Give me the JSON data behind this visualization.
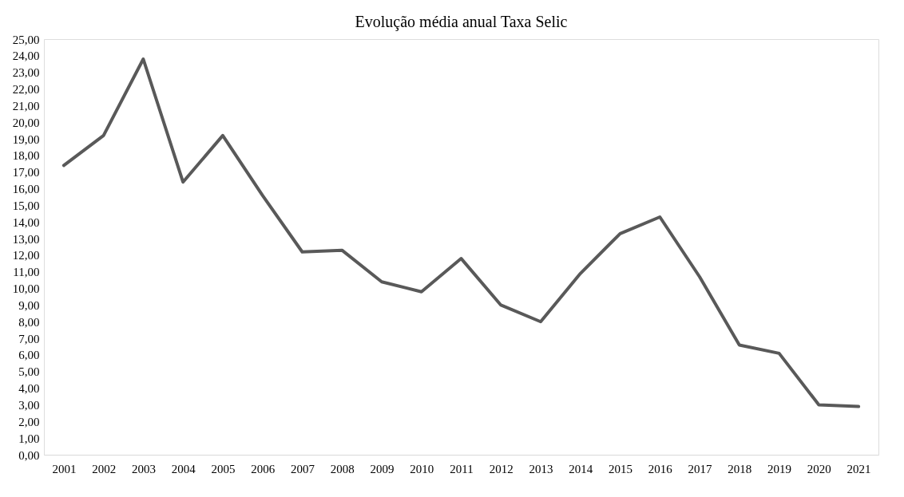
{
  "chart_data": {
    "type": "line",
    "title": "Evolução média anual Taxa Selic",
    "categories": [
      "2001",
      "2002",
      "2003",
      "2004",
      "2005",
      "2006",
      "2007",
      "2008",
      "2009",
      "2010",
      "2011",
      "2012",
      "2013",
      "2014",
      "2015",
      "2016",
      "2017",
      "2018",
      "2019",
      "2020",
      "2021"
    ],
    "series": [
      {
        "color": "#595959",
        "values": [
          17.4,
          19.2,
          23.8,
          16.4,
          19.2,
          15.6,
          12.2,
          12.3,
          10.4,
          9.8,
          11.8,
          9.0,
          8.0,
          10.9,
          13.3,
          14.3,
          10.7,
          6.6,
          6.1,
          3.0,
          2.9
        ]
      }
    ],
    "ylim": [
      0,
      25
    ],
    "yticks": [
      {
        "value": 0,
        "label": "0,00"
      },
      {
        "value": 1,
        "label": "1,00"
      },
      {
        "value": 2,
        "label": "2,00"
      },
      {
        "value": 3,
        "label": "3,00"
      },
      {
        "value": 4,
        "label": "4,00"
      },
      {
        "value": 5,
        "label": "5,00"
      },
      {
        "value": 6,
        "label": "6,00"
      },
      {
        "value": 7,
        "label": "7,00"
      },
      {
        "value": 8,
        "label": "8,00"
      },
      {
        "value": 9,
        "label": "9,00"
      },
      {
        "value": 10,
        "label": "10,00"
      },
      {
        "value": 11,
        "label": "11,00"
      },
      {
        "value": 12,
        "label": "12,00"
      },
      {
        "value": 13,
        "label": "13,00"
      },
      {
        "value": 14,
        "label": "14,00"
      },
      {
        "value": 15,
        "label": "15,00"
      },
      {
        "value": 16,
        "label": "16,00"
      },
      {
        "value": 17,
        "label": "17,00"
      },
      {
        "value": 18,
        "label": "18,00"
      },
      {
        "value": 19,
        "label": "19,00"
      },
      {
        "value": 20,
        "label": "20,00"
      },
      {
        "value": 21,
        "label": "21,00"
      },
      {
        "value": 22,
        "label": "22,00"
      },
      {
        "value": 23,
        "label": "23,00"
      },
      {
        "value": 24,
        "label": "24,00"
      },
      {
        "value": 25,
        "label": "25,00"
      }
    ],
    "grid": false,
    "marker": "none",
    "line_style": "solid"
  }
}
